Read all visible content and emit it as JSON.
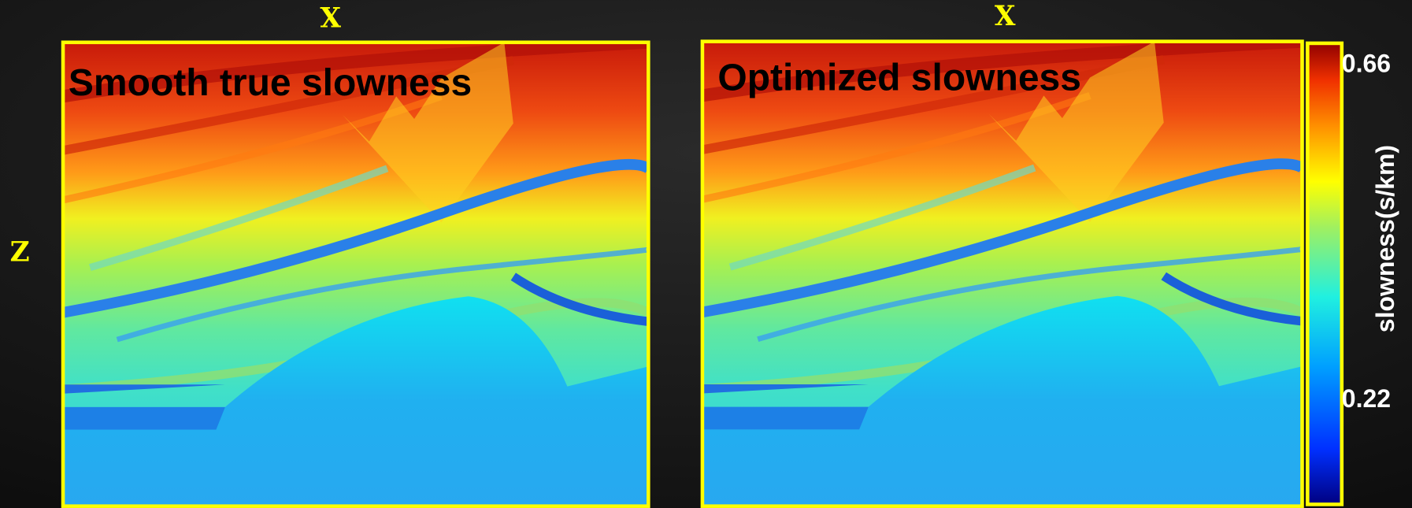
{
  "panels": [
    {
      "axis_x": "X",
      "title": "Smooth true slowness"
    },
    {
      "axis_x": "X",
      "title": "Optimized slowness"
    }
  ],
  "axis_z": "Z",
  "colorbar": {
    "label": "slowness(s/km)",
    "ticks": [
      "0.66",
      "0.22"
    ]
  }
}
